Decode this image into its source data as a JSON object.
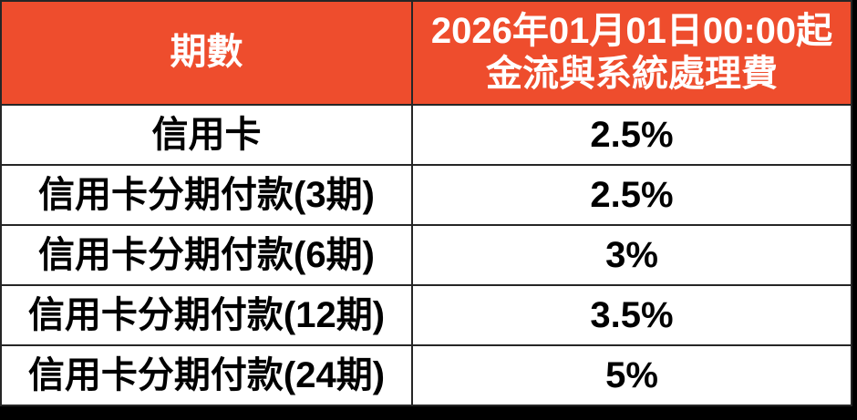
{
  "colors": {
    "header_bg": "#EE4D2D",
    "header_text": "#FFFFFF",
    "cell_bg": "#FFFFFF",
    "cell_text": "#000000",
    "border": "#262626",
    "page_bg": "#000000"
  },
  "table": {
    "header": {
      "period_col": "期數",
      "fee_col": "2026年01月01日00:00起\n金流與系統處理費"
    },
    "rows": [
      {
        "period": "信用卡",
        "fee": "2.5%"
      },
      {
        "period": "信用卡分期付款(3期)",
        "fee": "2.5%"
      },
      {
        "period": "信用卡分期付款(6期)",
        "fee": "3%"
      },
      {
        "period": "信用卡分期付款(12期)",
        "fee": "3.5%"
      },
      {
        "period": "信用卡分期付款(24期)",
        "fee": "5%"
      }
    ]
  },
  "chart_data": {
    "type": "table",
    "title": "2026年01月01日00:00起 金流與系統處理費",
    "columns": [
      "期數",
      "2026年01月01日00:00起金流與系統處理費"
    ],
    "categories": [
      "信用卡",
      "信用卡分期付款(3期)",
      "信用卡分期付款(6期)",
      "信用卡分期付款(12期)",
      "信用卡分期付款(24期)"
    ],
    "values_percent": [
      2.5,
      2.5,
      3,
      3.5,
      5
    ],
    "values_text": [
      "2.5%",
      "2.5%",
      "3%",
      "3.5%",
      "5%"
    ]
  }
}
